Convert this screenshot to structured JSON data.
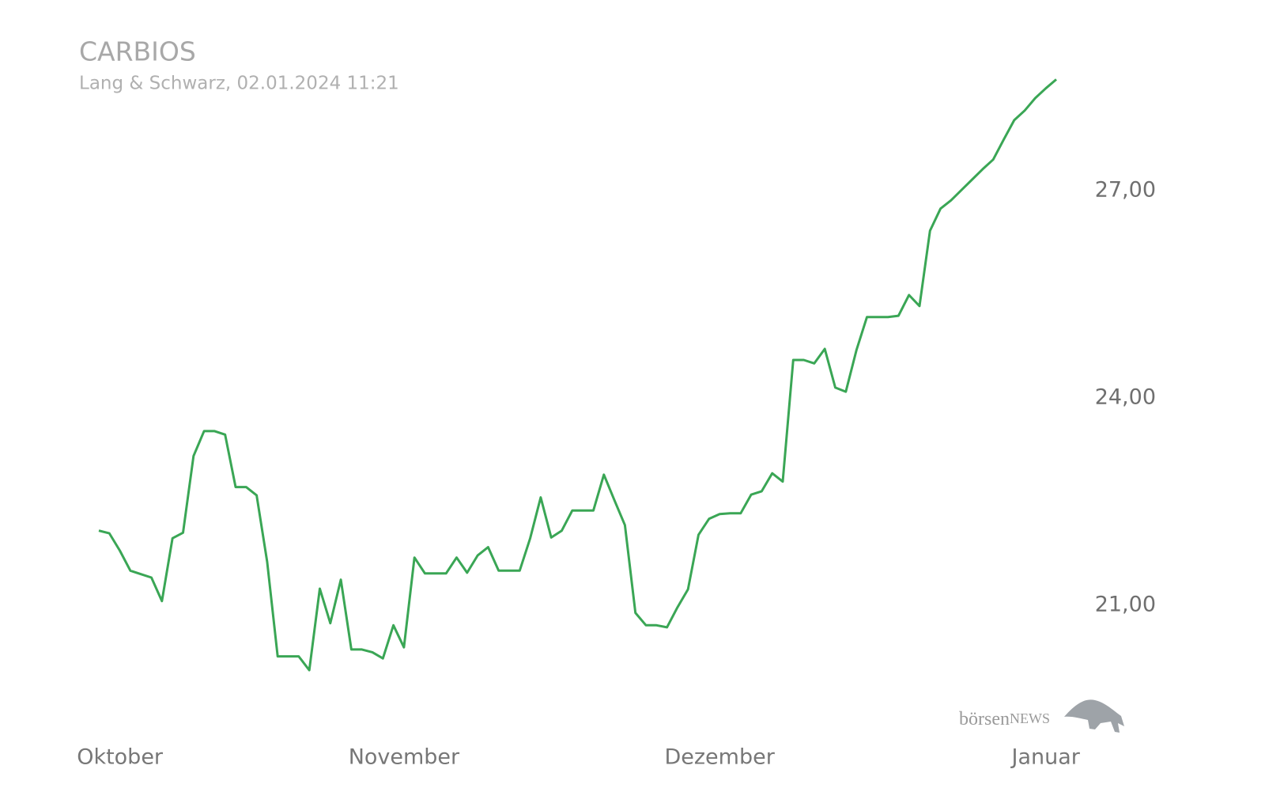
{
  "chart_data": {
    "type": "line",
    "title": "CARBIOS",
    "subtitle": "Lang & Schwarz, 02.01.2024 11:21",
    "watermark": {
      "prefix": "börsen",
      "suffix": "NEWS"
    },
    "categories": [
      null,
      null,
      "Oktober",
      null,
      null,
      null,
      null,
      null,
      null,
      null,
      null,
      null,
      null,
      null,
      null,
      null,
      null,
      null,
      null,
      null,
      null,
      null,
      null,
      null,
      null,
      null,
      null,
      null,
      null,
      "November",
      null,
      null,
      null,
      null,
      null,
      null,
      null,
      null,
      null,
      null,
      null,
      null,
      null,
      null,
      null,
      null,
      null,
      null,
      null,
      null,
      null,
      null,
      null,
      null,
      null,
      null,
      null,
      null,
      null,
      "Dezember",
      null,
      null,
      null,
      null,
      null,
      null,
      null,
      null,
      null,
      null,
      null,
      null,
      null,
      null,
      null,
      null,
      null,
      null,
      null,
      null,
      null,
      null,
      null,
      null,
      null,
      null,
      null,
      null,
      null,
      null,
      "Januar",
      null
    ],
    "series": [
      {
        "name": "CARBIOS",
        "color": "#3aa655",
        "values": [
          22.08,
          22.04,
          21.79,
          21.5,
          21.45,
          21.4,
          21.06,
          21.97,
          22.05,
          23.16,
          23.52,
          23.52,
          23.47,
          22.71,
          22.71,
          22.59,
          21.63,
          20.26,
          20.26,
          20.26,
          20.06,
          21.24,
          20.74,
          21.37,
          20.36,
          20.36,
          20.32,
          20.23,
          20.71,
          20.39,
          21.69,
          21.46,
          21.46,
          21.46,
          21.69,
          21.47,
          21.72,
          21.84,
          21.5,
          21.5,
          21.5,
          21.97,
          22.56,
          21.98,
          22.08,
          22.37,
          22.37,
          22.37,
          22.89,
          22.52,
          22.16,
          20.89,
          20.71,
          20.71,
          20.68,
          20.97,
          21.23,
          22.02,
          22.25,
          22.32,
          22.33,
          22.33,
          22.6,
          22.65,
          22.91,
          22.79,
          24.55,
          24.55,
          24.5,
          24.71,
          24.15,
          24.09,
          24.69,
          25.17,
          25.17,
          25.17,
          25.19,
          25.49,
          25.33,
          26.42,
          26.74,
          26.86,
          27.01,
          27.16,
          27.31,
          27.45,
          27.74,
          28.02,
          28.16,
          28.34,
          28.48,
          28.61
        ]
      }
    ],
    "ylim": [
      19.4,
      28.8
    ],
    "yticks": [
      {
        "value": 21,
        "label": "21,00"
      },
      {
        "value": 24,
        "label": "24,00"
      },
      {
        "value": 27,
        "label": "27,00"
      }
    ],
    "grid": false
  }
}
